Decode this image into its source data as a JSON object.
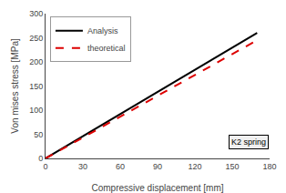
{
  "chart_data": {
    "type": "line",
    "xlabel": "Compressive displacement [mm]",
    "ylabel": "Von mises stress [MPa]",
    "x": [
      0,
      170
    ],
    "series": [
      {
        "name": "Analysis",
        "color": "#000000",
        "line_style": "solid",
        "values": [
          0,
          260
        ]
      },
      {
        "name": "theoretical",
        "color": "#dd0000",
        "line_style": "dashed",
        "values": [
          0,
          245
        ]
      }
    ],
    "xlim": [
      0,
      180
    ],
    "ylim": [
      0,
      300
    ],
    "xticks": [
      0,
      30,
      60,
      90,
      120,
      150,
      180
    ],
    "yticks": [
      0,
      50,
      100,
      150,
      200,
      250,
      300
    ],
    "annotations": [
      {
        "text": "K2 spring",
        "x": 147,
        "y": 18
      }
    ],
    "legend": "upper left",
    "grid": false
  }
}
